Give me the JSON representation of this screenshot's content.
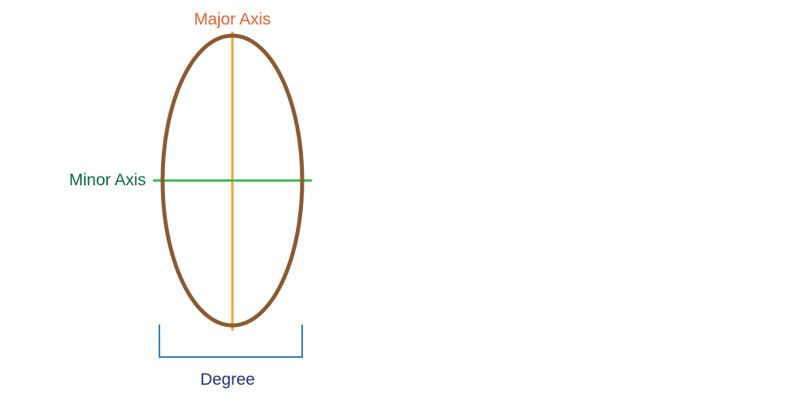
{
  "labels": {
    "major_axis": "Major Axis",
    "minor_axis": "Minor Axis",
    "degree": "Degree"
  },
  "colors": {
    "background": "#ffffff",
    "ellipse_outline": "#8B5A33",
    "major_axis_line": "#F5A623",
    "major_axis_text": "#E8602C",
    "minor_axis_line": "#3DB54A",
    "minor_axis_text": "#0B6B3A",
    "degree_bracket": "#2F7BBF",
    "degree_text": "#23307A"
  }
}
